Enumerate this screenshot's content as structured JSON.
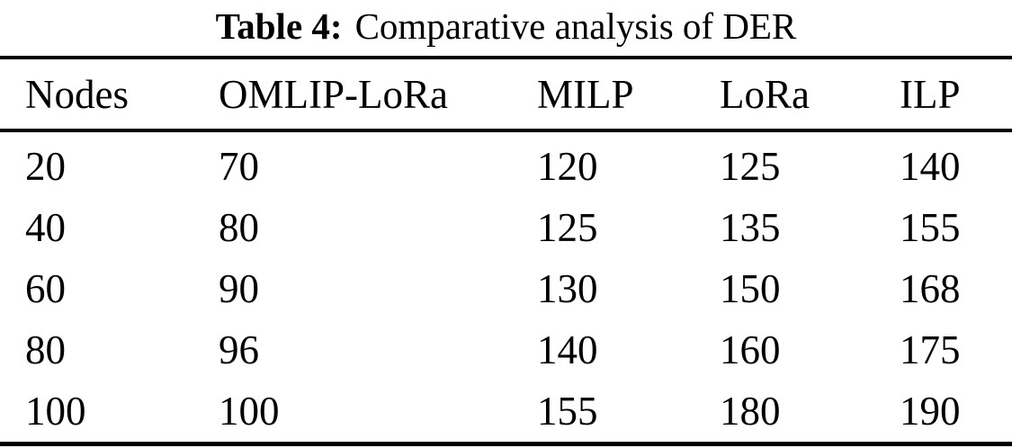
{
  "table": {
    "caption": {
      "label": "Table 4:",
      "text": "Comparative analysis of DER"
    },
    "columns": [
      "Nodes",
      "OMLIP-LoRa",
      "MILP",
      "LoRa",
      "ILP"
    ],
    "rows": [
      [
        "20",
        "70",
        "120",
        "125",
        "140"
      ],
      [
        "40",
        "80",
        "125",
        "135",
        "155"
      ],
      [
        "60",
        "90",
        "130",
        "150",
        "168"
      ],
      [
        "80",
        "96",
        "140",
        "160",
        "175"
      ],
      [
        "100",
        "100",
        "155",
        "180",
        "190"
      ]
    ]
  },
  "colors": {
    "text": "#000000",
    "background": "#ffffff",
    "rule": "#000000"
  }
}
